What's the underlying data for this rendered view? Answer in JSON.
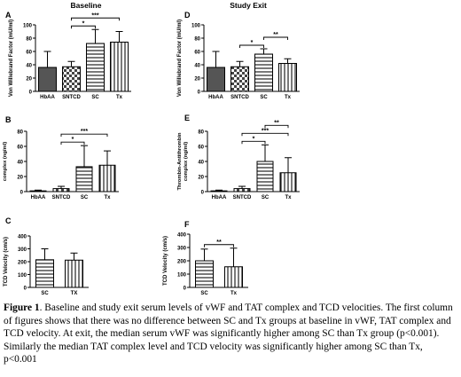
{
  "caption": {
    "label": "Figure 1",
    "text": ". Baseline and study exit serum levels of vWF and TAT complex and TCD velocities. The first column of figures shows that there was no difference between SC and Tx groups at baseline in vWF, TAT complex and TCD velocity. At exit, the median serum vWF was significantly higher among SC than Tx group (p<0.001). Similarly the median TAT complex level and TCD velocity was significantly higher among SC than Tx, p<0.001"
  },
  "colors": {
    "bar_fill": "#555555",
    "axis": "#000000",
    "background": "#ffffff"
  },
  "chart_data": [
    {
      "panel": "A",
      "type": "bar",
      "title": "Baseline",
      "ylabel": "Von Willebrand Factor (mU/ml)",
      "categories": [
        "HbAA",
        "SNTCD",
        "SC",
        "Tx"
      ],
      "values": [
        36,
        37,
        72,
        74
      ],
      "errors": [
        24,
        8,
        21,
        16
      ],
      "ylim": [
        0,
        100
      ],
      "yticks": [
        0,
        20,
        40,
        60,
        80,
        100
      ],
      "patterns": [
        "solid",
        "checker",
        "hlines",
        "vlines"
      ],
      "significance": [
        {
          "from": 1,
          "to": 2,
          "label": "*"
        },
        {
          "from": 1,
          "to": 3,
          "label": "***"
        }
      ]
    },
    {
      "panel": "D",
      "type": "bar",
      "title": "Study Exit",
      "ylabel": "Von Willebrand Factor (mU/ml)",
      "categories": [
        "HbAA",
        "SNTCD",
        "SC",
        "Tx"
      ],
      "values": [
        36,
        37,
        56,
        42
      ],
      "errors": [
        24,
        8,
        8,
        7
      ],
      "ylim": [
        0,
        100
      ],
      "yticks": [
        0,
        20,
        40,
        60,
        80,
        100
      ],
      "patterns": [
        "solid",
        "checker",
        "hlines",
        "vlines"
      ],
      "significance": [
        {
          "from": 1,
          "to": 2,
          "label": "*"
        },
        {
          "from": 2,
          "to": 3,
          "label": "**"
        }
      ]
    },
    {
      "panel": "B",
      "type": "bar",
      "title": "",
      "ylabel": "Thrombin-Antithrombin complex (ng/ml)",
      "categories": [
        "HbAA",
        "SNTCD",
        "SC",
        "Tx"
      ],
      "values": [
        1,
        4,
        33,
        35
      ],
      "errors": [
        1,
        3,
        28,
        19
      ],
      "ylim": [
        0,
        80
      ],
      "yticks": [
        0,
        20,
        40,
        60,
        80
      ],
      "patterns": [
        "solid",
        "checker",
        "hlines",
        "vlines"
      ],
      "significance": [
        {
          "from": 1,
          "to": 2,
          "label": "*"
        },
        {
          "from": 1,
          "to": 3,
          "label": "***"
        }
      ]
    },
    {
      "panel": "E",
      "type": "bar",
      "title": "",
      "ylabel": "Thrombin-Antithrombin complex (ng/ml)",
      "categories": [
        "HbAA",
        "SNTCD",
        "SC",
        "Tx"
      ],
      "values": [
        1,
        4,
        40,
        25
      ],
      "errors": [
        1,
        3,
        22,
        20
      ],
      "ylim": [
        0,
        80
      ],
      "yticks": [
        0,
        20,
        40,
        60,
        80
      ],
      "patterns": [
        "solid",
        "checker",
        "hlines",
        "vlines"
      ],
      "significance": [
        {
          "from": 1,
          "to": 2,
          "label": "*"
        },
        {
          "from": 1,
          "to": 3,
          "label": "***"
        },
        {
          "from": 2,
          "to": 3,
          "label": "**"
        }
      ]
    },
    {
      "panel": "C",
      "type": "bar",
      "title": "",
      "ylabel": "TCD Velocity (cm/s)",
      "categories": [
        "SC",
        "TX"
      ],
      "values": [
        215,
        212
      ],
      "errors": [
        85,
        55
      ],
      "ylim": [
        0,
        400
      ],
      "yticks": [
        0,
        100,
        200,
        300,
        400
      ],
      "patterns": [
        "hlines",
        "vlines"
      ],
      "significance": []
    },
    {
      "panel": "F",
      "type": "bar",
      "title": "",
      "ylabel": "TCD Velocity (cm/s)",
      "categories": [
        "SC",
        "Tx"
      ],
      "values": [
        200,
        155
      ],
      "errors": [
        88,
        140
      ],
      "ylim": [
        0,
        400
      ],
      "yticks": [
        0,
        100,
        200,
        300,
        400
      ],
      "patterns": [
        "hlines",
        "vlines"
      ],
      "significance": [
        {
          "from": 0,
          "to": 1,
          "label": "**"
        }
      ]
    }
  ]
}
